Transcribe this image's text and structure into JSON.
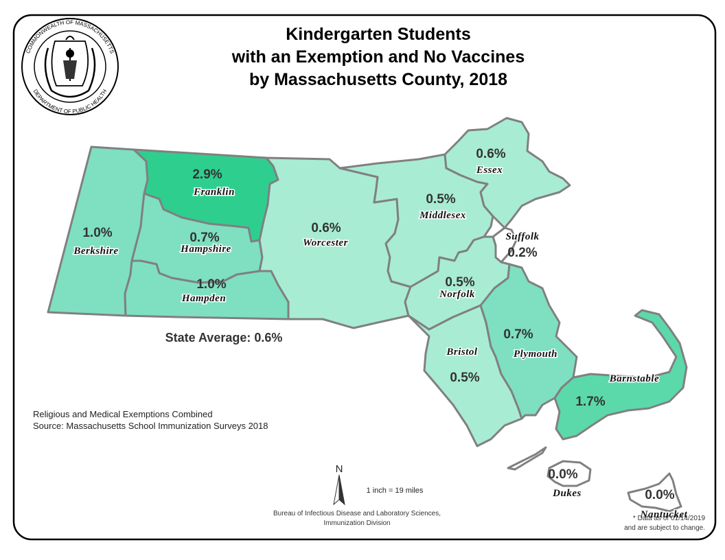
{
  "title": {
    "line1": "Kindergarten Students",
    "line2": "with an Exemption and No Vaccines",
    "line3": "by Massachusetts County, 2018"
  },
  "seal": {
    "top_text": "COMMONWEALTH OF MASSACHUSETTS",
    "bottom_text": "DEPARTMENT OF PUBLIC HEALTH"
  },
  "colors": {
    "lowest": "#ffffff",
    "low": "#a8ecd4",
    "mid": "#7ee0c0",
    "high": "#5cd9ab",
    "highest": "#2ecf8e",
    "outline": "#808080"
  },
  "counties": {
    "franklin": {
      "name": "Franklin",
      "pct": "2.9%"
    },
    "berkshire": {
      "name": "Berkshire",
      "pct": "1.0%"
    },
    "hampshire": {
      "name": "Hampshire",
      "pct": "0.7%"
    },
    "hampden": {
      "name": "Hampden",
      "pct": "1.0%"
    },
    "worcester": {
      "name": "Worcester",
      "pct": "0.6%"
    },
    "middlesex": {
      "name": "Middlesex",
      "pct": "0.5%"
    },
    "essex": {
      "name": "Essex",
      "pct": "0.6%"
    },
    "suffolk": {
      "name": "Suffolk",
      "pct": "0.2%"
    },
    "norfolk": {
      "name": "Norfolk",
      "pct": "0.5%"
    },
    "bristol": {
      "name": "Bristol",
      "pct": "0.5%"
    },
    "plymouth": {
      "name": "Plymouth",
      "pct": "0.7%"
    },
    "barnstable": {
      "name": "Barnstable",
      "pct": "1.7%"
    },
    "dukes": {
      "name": "Dukes",
      "pct": "0.0%"
    },
    "nantucket": {
      "name": "Nantucket",
      "pct": "0.0%"
    }
  },
  "state_average": "State Average: 0.6%",
  "notes": {
    "line1": "Religious and Medical Exemptions Combined",
    "line2": "Source: Massachusetts School Immunization Surveys 2018"
  },
  "north_label": "N",
  "scale_text": "1 inch = 19 miles",
  "credit": {
    "line1": "Bureau of Infectious Disease and Laboratory Sciences,",
    "line2": "Immunization Division"
  },
  "data_note": {
    "line1": "* Data as of 01/14/2019",
    "line2": "and are subject to change."
  }
}
